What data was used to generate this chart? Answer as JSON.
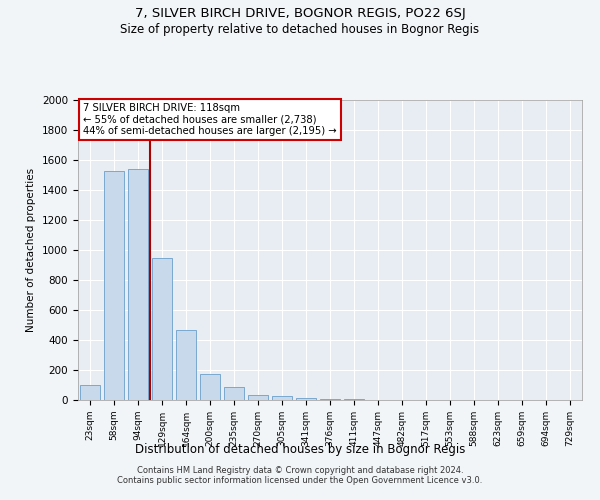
{
  "title": "7, SILVER BIRCH DRIVE, BOGNOR REGIS, PO22 6SJ",
  "subtitle": "Size of property relative to detached houses in Bognor Regis",
  "xlabel": "Distribution of detached houses by size in Bognor Regis",
  "ylabel": "Number of detached properties",
  "categories": [
    "23sqm",
    "58sqm",
    "94sqm",
    "129sqm",
    "164sqm",
    "200sqm",
    "235sqm",
    "270sqm",
    "305sqm",
    "341sqm",
    "376sqm",
    "411sqm",
    "447sqm",
    "482sqm",
    "517sqm",
    "553sqm",
    "588sqm",
    "623sqm",
    "659sqm",
    "694sqm",
    "729sqm"
  ],
  "values": [
    100,
    1530,
    1540,
    950,
    470,
    175,
    90,
    35,
    25,
    15,
    7,
    5,
    2,
    1,
    0,
    0,
    0,
    0,
    0,
    0,
    0
  ],
  "bar_color": "#c8d9ec",
  "bar_edge_color": "#6a9fcb",
  "vline_x_index": 2.5,
  "vline_color": "#aa0000",
  "annotation_line1": "7 SILVER BIRCH DRIVE: 118sqm",
  "annotation_line2": "← 55% of detached houses are smaller (2,738)",
  "annotation_line3": "44% of semi-detached houses are larger (2,195) →",
  "annotation_box_color": "#ffffff",
  "annotation_box_edge": "#cc0000",
  "ylim": [
    0,
    2000
  ],
  "yticks": [
    0,
    200,
    400,
    600,
    800,
    1000,
    1200,
    1400,
    1600,
    1800,
    2000
  ],
  "footer1": "Contains HM Land Registry data © Crown copyright and database right 2024.",
  "footer2": "Contains public sector information licensed under the Open Government Licence v3.0.",
  "bg_color": "#f2f5f8",
  "plot_bg_color": "#e8edf3"
}
